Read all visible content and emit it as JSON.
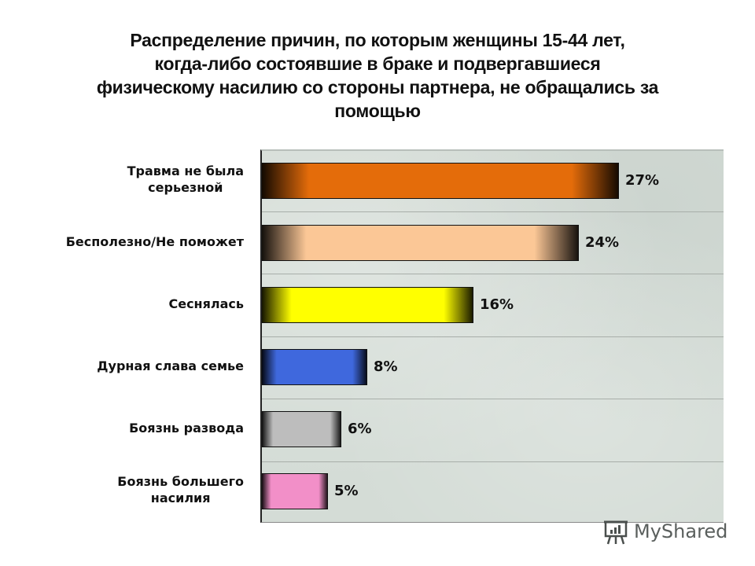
{
  "title": "Распределение причин, по которым женщины 15-44 лет, когда-либо состоявшие в браке и подвергавшиеся физическому насилию со стороны партнера, не обращались за помощью",
  "title_lines": [
    "Распределение причин, по которым женщины 15-44 лет,",
    "когда-либо состоявшие в браке и подвергавшиеся",
    "физическому насилию со стороны партнера, не обращались за",
    "помощью"
  ],
  "watermark": {
    "icon": "presentation-board-icon",
    "text": "MyShared"
  },
  "bars": [
    {
      "label_lines": [
        "Травма не была",
        "серьезной"
      ],
      "value": 27,
      "value_label": "27%",
      "color": "#e46c0a"
    },
    {
      "label_lines": [
        "Бесполезно/Не поможет"
      ],
      "value": 24,
      "value_label": "24%",
      "color": "#fbc796"
    },
    {
      "label_lines": [
        "Сеснялась"
      ],
      "value": 16,
      "value_label": "16%",
      "color": "#ffff00"
    },
    {
      "label_lines": [
        "Дурная слава семье"
      ],
      "value": 8,
      "value_label": "8%",
      "color": "#3f68dd"
    },
    {
      "label_lines": [
        "Боязнь развода"
      ],
      "value": 6,
      "value_label": "6%",
      "color": "#bdbdbd"
    },
    {
      "label_lines": [
        "Боязнь большего",
        "насилия"
      ],
      "value": 5,
      "value_label": "5%",
      "color": "#f28fc8"
    }
  ],
  "chart_data": {
    "type": "bar",
    "orientation": "horizontal",
    "title": "Распределение причин, по которым женщины 15-44 лет, когда-либо состоявшие в браке и подвергавшиеся физическому насилию со стороны партнера, не обращались за помощью",
    "categories": [
      "Травма не была серьезной",
      "Бесполезно/Не поможет",
      "Сеснялась",
      "Дурная слава семье",
      "Боязнь развода",
      "Боязнь большего насилия"
    ],
    "values": [
      27,
      24,
      16,
      8,
      6,
      5
    ],
    "value_labels": [
      "27%",
      "24%",
      "16%",
      "8%",
      "6%",
      "5%"
    ],
    "colors": [
      "#e46c0a",
      "#fbc796",
      "#ffff00",
      "#3f68dd",
      "#bdbdbd",
      "#f28fc8"
    ],
    "xlabel": "",
    "ylabel": "",
    "xlim": [
      0,
      35
    ],
    "grid": "horizontal band separators",
    "legend": "none"
  }
}
